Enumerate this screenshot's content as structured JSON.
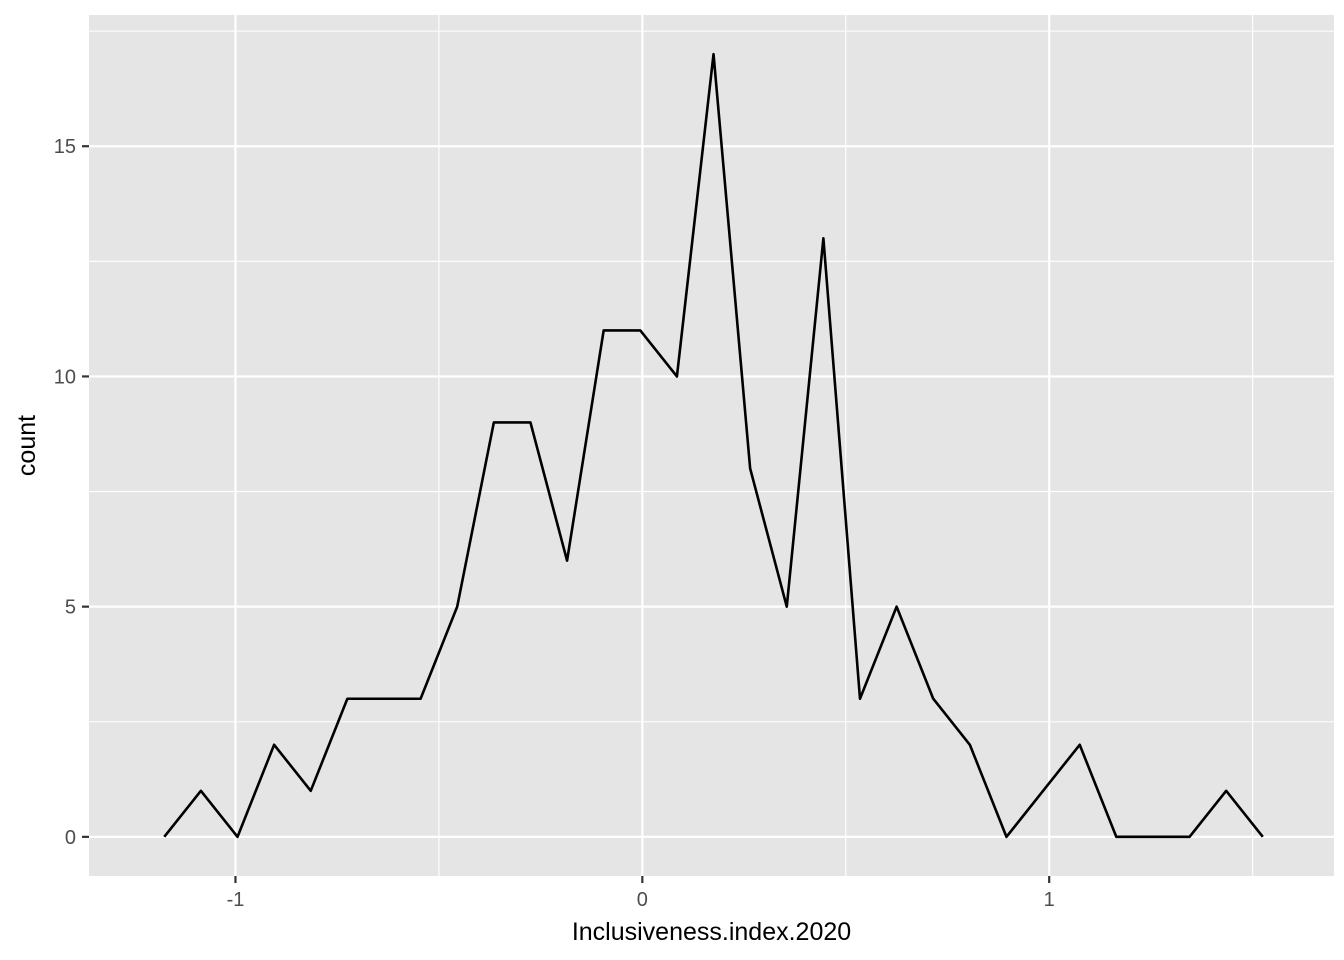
{
  "chart_data": {
    "type": "line",
    "title": "",
    "xlabel": "Inclusiveness.index.2020",
    "ylabel": "count",
    "xlim": [
      -1.36,
      1.7
    ],
    "ylim": [
      -0.85,
      17.85
    ],
    "x_ticks": [
      -1,
      0,
      1
    ],
    "x_tick_labels": [
      "-1",
      "0",
      "1"
    ],
    "x_minor_ticks": [
      -0.5,
      0.5,
      1.5
    ],
    "y_ticks": [
      0,
      5,
      10,
      15
    ],
    "y_tick_labels": [
      "0",
      "5",
      "10",
      "15"
    ],
    "y_minor_ticks": [
      2.5,
      7.5,
      12.5,
      17.5
    ],
    "grid": true,
    "panel_background": "#e5e5e5",
    "grid_color": "#ffffff",
    "line_color": "#000000",
    "series": [
      {
        "x": [
          -1.175,
          -1.085,
          -0.995,
          -0.905,
          -0.815,
          -0.725,
          -0.635,
          -0.545,
          -0.455,
          -0.365,
          -0.275,
          -0.185,
          -0.095,
          -0.005,
          0.085,
          0.175,
          0.265,
          0.355,
          0.445,
          0.535,
          0.625,
          0.715,
          0.805,
          0.895,
          0.985,
          1.075,
          1.165,
          1.255,
          1.345,
          1.435,
          1.525
        ],
        "values": [
          0,
          1,
          0,
          2,
          1,
          3,
          3,
          3,
          5,
          9,
          9,
          6,
          11,
          11,
          10,
          17,
          8,
          5,
          13,
          3,
          5,
          3,
          2,
          0,
          1,
          2,
          0,
          0,
          0,
          1,
          0
        ]
      }
    ]
  }
}
